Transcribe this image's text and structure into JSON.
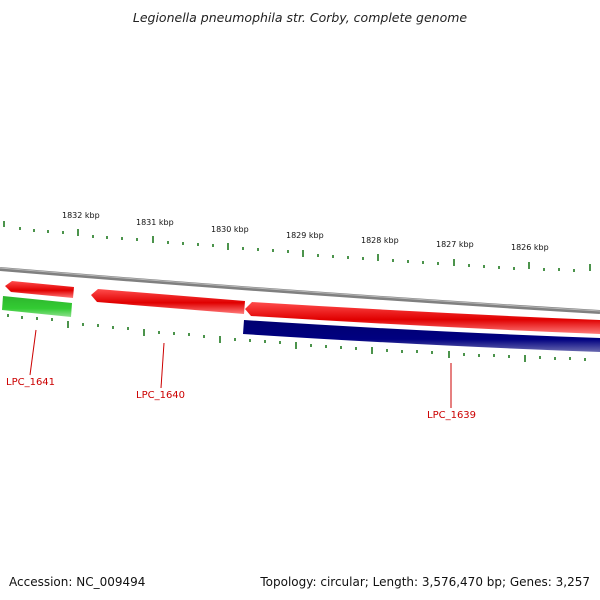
{
  "title": "Legionella pneumophila str. Corby, complete genome",
  "accession": "Accession: NC_009494",
  "summary": "Topology: circular; Length: 3,576,470 bp; Genes: 3,257",
  "colors": {
    "backbone": "#808080",
    "forward_gene": "#ee0000",
    "reverse_gene": "#000080",
    "other_gene": "#33cc33",
    "tick": "#1f7a1f",
    "gene_label": "#cc0000"
  },
  "kbp_labels": [
    "1832 kbp",
    "1831 kbp",
    "1830 kbp",
    "1829 kbp",
    "1828 kbp",
    "1827 kbp",
    "1826 kbp"
  ],
  "genes": [
    {
      "name": "LPC_1641"
    },
    {
      "name": "LPC_1640"
    },
    {
      "name": "LPC_1639"
    }
  ]
}
